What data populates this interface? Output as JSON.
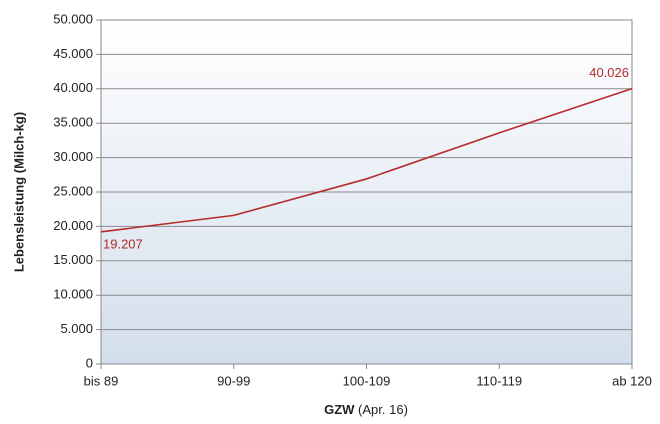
{
  "chart_data": {
    "type": "line",
    "y_label": "Lebensleistung (Milch-kg)",
    "x_label": {
      "main": "GZW",
      "note": "(Apr. 16)"
    },
    "categories": [
      "bis 89",
      "90-99",
      "100-109",
      "110-119",
      "ab 120"
    ],
    "values": [
      19207,
      21600,
      26900,
      33600,
      40026
    ],
    "value_labels": [
      "19.207",
      null,
      null,
      null,
      "40.026"
    ],
    "color": "#b52a2a",
    "ylim": [
      0,
      50000
    ],
    "yticks": [
      {
        "value": 0,
        "label": "0"
      },
      {
        "value": 5000,
        "label": "5.000"
      },
      {
        "value": 10000,
        "label": "10.000"
      },
      {
        "value": 15000,
        "label": "15.000"
      },
      {
        "value": 20000,
        "label": "20.000"
      },
      {
        "value": 25000,
        "label": "25.000"
      },
      {
        "value": 30000,
        "label": "30.000"
      },
      {
        "value": 35000,
        "label": "35.000"
      },
      {
        "value": 40000,
        "label": "40.000"
      },
      {
        "value": 45000,
        "label": "45.000"
      },
      {
        "value": 50000,
        "label": "50.000"
      }
    ],
    "grid": true
  }
}
